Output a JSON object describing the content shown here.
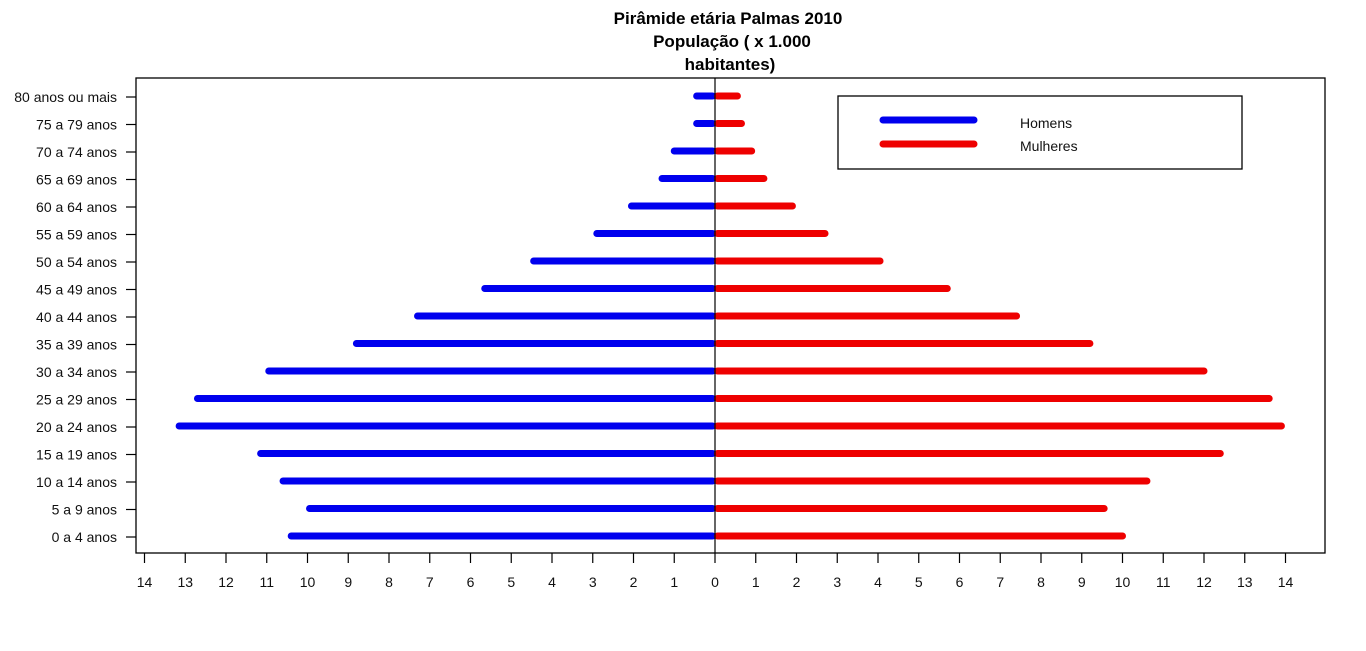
{
  "chart_data": {
    "type": "bar",
    "orientation": "horizontal",
    "layout": "population-pyramid",
    "title_lines": [
      "Pirâmide etária Palmas 2010",
      "População ( x 1.000",
      "habitantes)"
    ],
    "xlabel": "",
    "ylabel": "",
    "categories": [
      "0 a 4 anos",
      "5 a 9 anos",
      "10 a 14 anos",
      "15 a 19 anos",
      "20 a 24 anos",
      "25 a 29 anos",
      "30 a 34 anos",
      "35 a 39 anos",
      "40 a 44 anos",
      "45 a 49 anos",
      "50 a 54 anos",
      "55 a 59 anos",
      "60 a 64 anos",
      "65 a 69 anos",
      "70 a 74 anos",
      "75 a 79 anos",
      "80 anos ou mais"
    ],
    "series": [
      {
        "name": "Homens",
        "color": "#0000ee",
        "side": "left",
        "values": [
          10.4,
          9.95,
          10.6,
          11.15,
          13.15,
          12.7,
          10.95,
          8.8,
          7.3,
          5.65,
          4.45,
          2.9,
          2.05,
          1.3,
          1.0,
          0.45,
          0.45
        ]
      },
      {
        "name": "Mulheres",
        "color": "#ee0000",
        "side": "right",
        "values": [
          10.0,
          9.55,
          10.6,
          12.4,
          13.9,
          13.6,
          12.0,
          9.2,
          7.4,
          5.7,
          4.05,
          2.7,
          1.9,
          1.2,
          0.9,
          0.65,
          0.55
        ]
      }
    ],
    "x_ticks_left": [
      "14",
      "13",
      "12",
      "11",
      "10",
      "9",
      "8",
      "7",
      "6",
      "5",
      "4",
      "3",
      "2",
      "1",
      "0"
    ],
    "x_ticks_right": [
      "0",
      "1",
      "2",
      "3",
      "4",
      "5",
      "6",
      "7",
      "8",
      "9",
      "10",
      "11",
      "12",
      "13",
      "14"
    ],
    "xlim": [
      -14.2,
      14.9
    ],
    "grid": false,
    "legend": {
      "position": "top-right",
      "entries": [
        "Homens",
        "Mulheres"
      ]
    }
  }
}
